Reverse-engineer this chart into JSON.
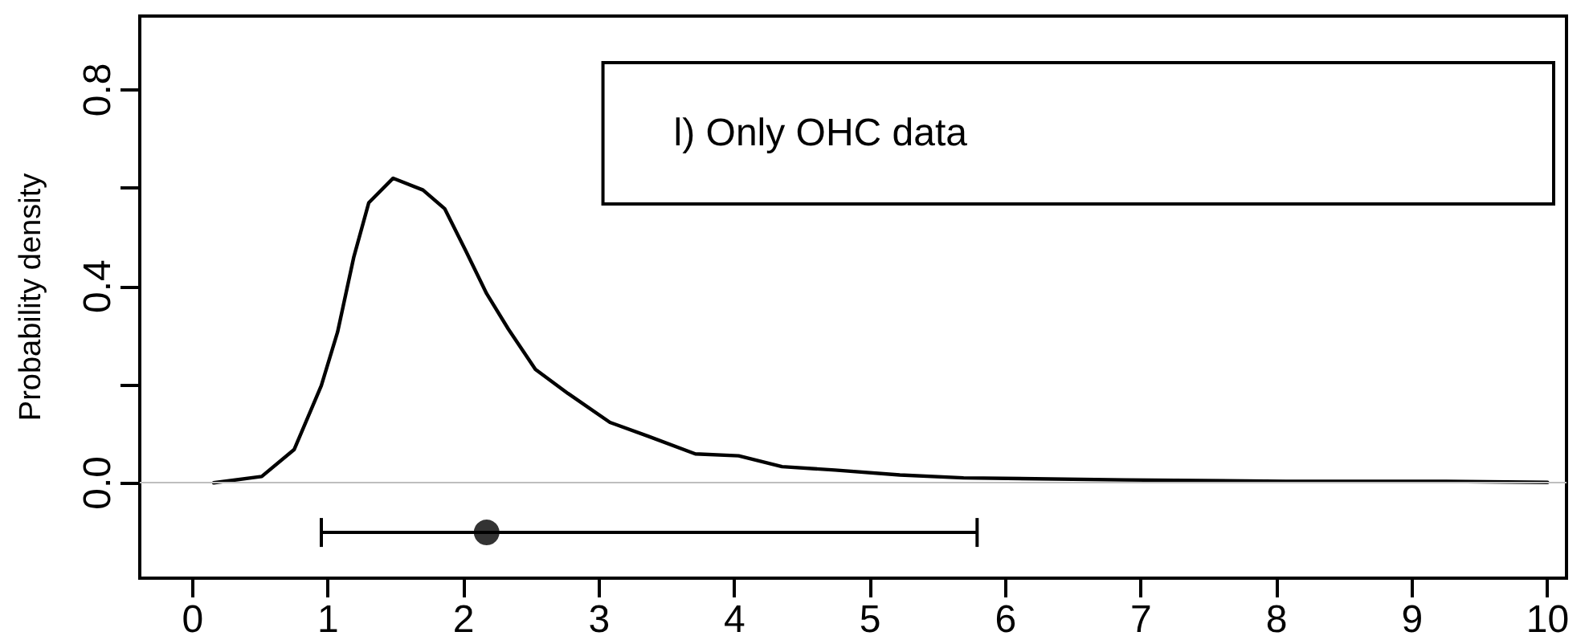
{
  "chart_data": {
    "type": "line",
    "ylabel": "Probability density",
    "annotations": [
      "l) Only OHC data"
    ],
    "xlim": [
      -0.39,
      10.14
    ],
    "xticks": [
      0,
      1,
      2,
      3,
      4,
      5,
      6,
      7,
      8,
      9,
      10
    ],
    "ylim": [
      -0.194,
      0.95
    ],
    "yticks": [
      {
        "value": 0.0,
        "label": "0.0"
      },
      {
        "value": 0.2,
        "label": null
      },
      {
        "value": 0.4,
        "label": "0.4"
      },
      {
        "value": 0.6,
        "label": null
      },
      {
        "value": 0.8,
        "label": "0.8"
      }
    ],
    "grid": false,
    "marker": "none",
    "line_style": "solid",
    "ref_lines": [
      {
        "axis": "y",
        "value": 0,
        "color": "#bebebe"
      }
    ],
    "series": [
      {
        "color": "#000000",
        "x": [
          0.155,
          0.51,
          0.75,
          0.95,
          1.07,
          1.19,
          1.3,
          1.48,
          1.7,
          1.86,
          2.02,
          2.17,
          2.33,
          2.53,
          2.77,
          3.08,
          3.36,
          3.71,
          4.03,
          4.35,
          4.74,
          5.22,
          5.69,
          6.88,
          8.07,
          9.25,
          10.0
        ],
        "values": [
          0,
          0.013,
          0.068,
          0.198,
          0.307,
          0.46,
          0.57,
          0.62,
          0.596,
          0.558,
          0.47,
          0.385,
          0.313,
          0.231,
          0.182,
          0.123,
          0.095,
          0.059,
          0.055,
          0.033,
          0.026,
          0.016,
          0.01,
          0.006,
          0.003,
          0.003,
          0.001
        ]
      },
      {
        "type": "scatter",
        "marker": "circle",
        "color": "#000000",
        "x": [
          2.17
        ],
        "values": [
          -0.101
        ],
        "xerrors": [
          [
            0.95,
            5.79
          ]
        ]
      }
    ]
  }
}
